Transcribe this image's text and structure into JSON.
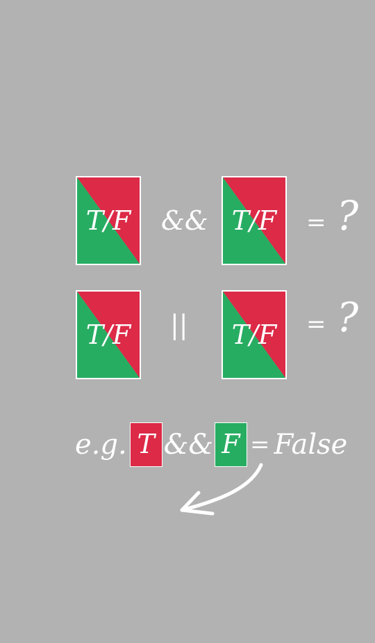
{
  "colors": {
    "background": "#b2b2b2",
    "true_red": "#dc2a47",
    "false_green": "#27ad62",
    "text": "#ffffff"
  },
  "puzzle": {
    "rows": [
      {
        "left_card": "T/F",
        "operator": "&&",
        "right_card": "T/F",
        "equals": "=",
        "result": "?"
      },
      {
        "left_card": "T/F",
        "operator": "||",
        "right_card": "T/F",
        "equals": "=",
        "result": "?"
      }
    ]
  },
  "example": {
    "prefix": "e.g.",
    "left_value": "T",
    "operator": "&&",
    "right_value": "F",
    "equals": "=",
    "result": "False"
  },
  "icons": {
    "hint_arrow": "curved-arrow-icon"
  }
}
